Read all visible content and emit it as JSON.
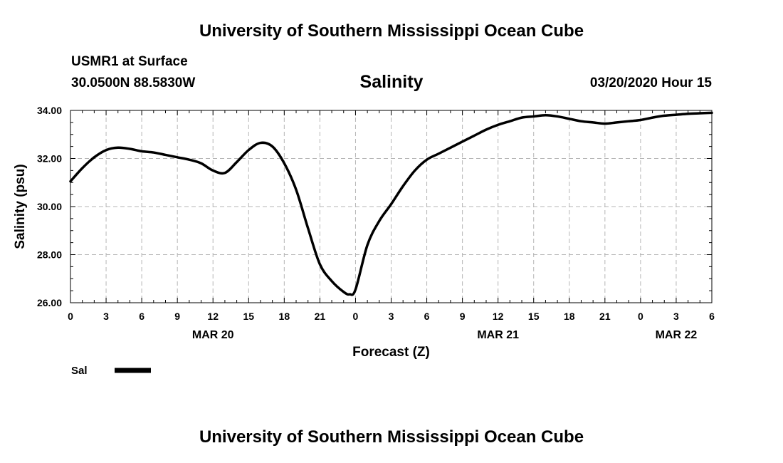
{
  "header": {
    "title": "University of Southern Mississippi Ocean Cube",
    "station": "USMR1 at Surface",
    "coords": "30.0500N 88.5830W",
    "plot_title": "Salinity",
    "datetime": "03/20/2020 Hour 15"
  },
  "footer": {
    "title": "University of Southern Mississippi Ocean Cube"
  },
  "chart_data": {
    "type": "line",
    "title": "Salinity",
    "xlabel": "Forecast (Z)",
    "ylabel": "Salinity (psu)",
    "ylim": [
      26,
      34
    ],
    "y_ticks": [
      "26.00",
      "28.00",
      "30.00",
      "32.00",
      "34.00"
    ],
    "x_unit": "hours from 2020-03-20 00Z",
    "xlim": [
      0,
      54
    ],
    "x_tick_labels": [
      "0",
      "3",
      "6",
      "9",
      "12",
      "15",
      "18",
      "21",
      "0",
      "3",
      "6",
      "9",
      "12",
      "15",
      "18",
      "21",
      "0",
      "3",
      "6"
    ],
    "date_labels": [
      {
        "label": "MAR 20",
        "hour": 12
      },
      {
        "label": "MAR 21",
        "hour": 36
      },
      {
        "label": "MAR 22",
        "hour": 51
      }
    ],
    "grid": true,
    "legend": {
      "placement": "bottom-left",
      "entries": [
        "Sal"
      ]
    },
    "series": [
      {
        "name": "Sal",
        "color": "#000000",
        "x": [
          0,
          1,
          2,
          3,
          4,
          5,
          6,
          7,
          8,
          9,
          10,
          11,
          12,
          13,
          14,
          15,
          16,
          17,
          18,
          19,
          20,
          21,
          22,
          23,
          23.5,
          24,
          25,
          26,
          27,
          28,
          29,
          30,
          31,
          32,
          33,
          34,
          35,
          36,
          37,
          38,
          39,
          40,
          41,
          42,
          43,
          44,
          45,
          46,
          47,
          48,
          49,
          50,
          51,
          52,
          53,
          54
        ],
        "values": [
          31.05,
          31.6,
          32.05,
          32.35,
          32.45,
          32.4,
          32.3,
          32.25,
          32.15,
          32.05,
          31.95,
          31.8,
          31.5,
          31.4,
          31.85,
          32.35,
          32.65,
          32.5,
          31.8,
          30.7,
          29.1,
          27.6,
          26.9,
          26.45,
          26.35,
          26.55,
          28.4,
          29.4,
          30.1,
          30.85,
          31.5,
          31.95,
          32.2,
          32.45,
          32.7,
          32.95,
          33.2,
          33.4,
          33.55,
          33.7,
          33.75,
          33.8,
          33.75,
          33.65,
          33.55,
          33.5,
          33.45,
          33.5,
          33.55,
          33.6,
          33.7,
          33.78,
          33.82,
          33.86,
          33.88,
          33.9
        ]
      }
    ]
  }
}
